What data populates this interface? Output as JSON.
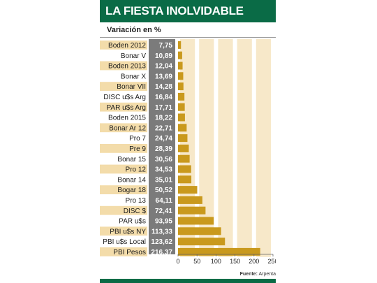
{
  "header": {
    "title": "LA FIESTA INOLVIDABLE",
    "subtitle": "Variación en %"
  },
  "source": {
    "label": "Fuente:",
    "name": "Arpenta"
  },
  "colors": {
    "header_green": "#0a6b46",
    "label_bg": "#f3dcaa",
    "value_column_bg": "#7b7b7b",
    "stripe_bg": "#f7e8c9",
    "bar": "#c9991d"
  },
  "chart_data": {
    "type": "bar",
    "orientation": "horizontal",
    "categories": [
      "Boden 2012",
      "Bonar V",
      "Boden 2013",
      "Bonar X",
      "Bonar VII",
      "DISC u$s Arg",
      "PAR u$s Arg",
      "Boden 2015",
      "Bonar Ar 12",
      "Pro 7",
      "Pre 9",
      "Bonar 15",
      "Pro 12",
      "Bonar 14",
      "Bogar 18",
      "Pro 13",
      "DISC $",
      "PAR u$s",
      "PBI u$s NY",
      "PBI u$s Local",
      "PBI Pesos"
    ],
    "values": [
      7.75,
      10.89,
      12.04,
      13.69,
      14.28,
      16.84,
      17.71,
      18.22,
      22.71,
      24.74,
      28.39,
      30.56,
      34.53,
      35.01,
      50.52,
      64.11,
      72.41,
      93.95,
      113.33,
      123.62,
      216.37
    ],
    "value_labels": [
      "7,75",
      "10,89",
      "12,04",
      "13,69",
      "14,28",
      "16,84",
      "17,71",
      "18,22",
      "22,71",
      "24,74",
      "28,39",
      "30,56",
      "34,53",
      "35,01",
      "50,52",
      "64,11",
      "72,41",
      "93,95",
      "113,33",
      "123,62",
      "216,37"
    ],
    "xlim": [
      0,
      250
    ],
    "xticks": [
      0,
      50,
      100,
      150,
      200,
      250
    ],
    "xtick_labels": [
      "0",
      "50",
      "100",
      "150",
      "200",
      "250"
    ],
    "title": "LA FIESTA INOLVIDABLE",
    "subtitle": "Variación en %",
    "grid": "vertical stripes"
  }
}
